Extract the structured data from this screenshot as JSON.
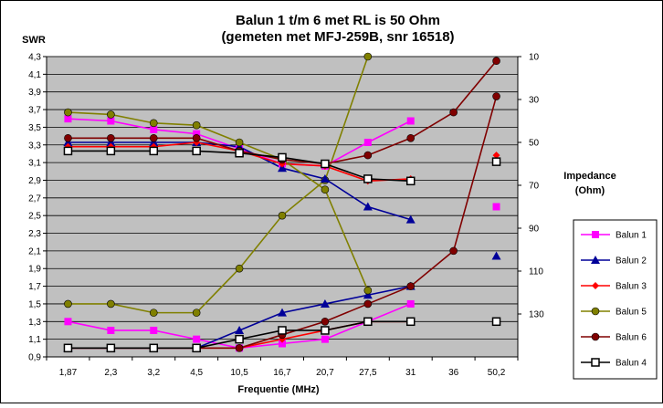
{
  "chart_data": {
    "type": "line",
    "title": "Balun 1 t/m 6 met RL is 50 Ohm",
    "subtitle": "(gemeten met MFJ-259B, snr 16518)",
    "xlabel": "Frequentie (MHz)",
    "ylabel": "SWR",
    "y2label_line1": "Impedance",
    "y2label_line2": "(Ohm)",
    "categories": [
      "1,87",
      "2,3",
      "3,2",
      "4,5",
      "10,5",
      "16,7",
      "20,7",
      "27,5",
      "31",
      "36",
      "50,2"
    ],
    "ylim": [
      0.9,
      4.3
    ],
    "yticks": [
      "0,9",
      "1,1",
      "1,3",
      "1,5",
      "1,7",
      "1,9",
      "2,1",
      "2,3",
      "2,5",
      "2,7",
      "2,9",
      "3,1",
      "3,3",
      "3,5",
      "3,7",
      "3,9",
      "4,1",
      "4,3"
    ],
    "y2lim": [
      150,
      10
    ],
    "y2ticks": [
      "10",
      "30",
      "50",
      "70",
      "90",
      "110",
      "130"
    ],
    "grid": true,
    "legend_position": "right",
    "colors": {
      "balun1": "#ff00ff",
      "balun2": "#000099",
      "balun3": "#ff0000",
      "balun5": "#808000",
      "balun6": "#800000",
      "balun4": "#000000",
      "plot_bg": "#c0c0c0"
    },
    "series": [
      {
        "name": "Balun 1",
        "color": "#ff00ff",
        "marker": "square",
        "axis": "swr",
        "values": [
          1.3,
          1.2,
          1.2,
          1.1,
          1.0,
          1.05,
          1.1,
          1.3,
          1.5,
          null,
          null
        ]
      },
      {
        "name": "Balun 2",
        "color": "#000099",
        "marker": "triangle",
        "axis": "swr",
        "values": [
          1.0,
          1.0,
          1.0,
          1.0,
          1.2,
          1.4,
          1.5,
          1.6,
          1.7,
          null,
          null
        ]
      },
      {
        "name": "Balun 3",
        "color": "#ff0000",
        "marker": "diamond",
        "axis": "swr",
        "values": [
          1.0,
          1.0,
          1.0,
          1.0,
          1.0,
          1.1,
          1.2,
          1.3,
          1.3,
          null,
          null
        ]
      },
      {
        "name": "Balun 5",
        "color": "#808000",
        "marker": "circle",
        "axis": "swr",
        "values": [
          1.5,
          1.5,
          1.4,
          1.4,
          1.9,
          2.5,
          2.9,
          4.3,
          null,
          null,
          null
        ]
      },
      {
        "name": "Balun 6",
        "color": "#800000",
        "marker": "circle",
        "axis": "swr",
        "values": [
          1.0,
          1.0,
          1.0,
          1.0,
          1.0,
          1.15,
          1.3,
          1.5,
          1.7,
          2.1,
          3.85
        ]
      },
      {
        "name": "Balun 4",
        "color": "#000000",
        "marker": "open-square",
        "axis": "swr",
        "values": [
          1.0,
          1.0,
          1.0,
          1.0,
          1.1,
          1.2,
          1.2,
          1.3,
          1.3,
          null,
          1.3
        ]
      },
      {
        "name": "Balun 1",
        "color": "#ff00ff",
        "marker": "square",
        "axis": "impedance",
        "values": [
          39,
          40,
          44,
          46,
          53,
          60,
          61,
          50,
          40,
          null,
          80
        ]
      },
      {
        "name": "Balun 2",
        "color": "#000099",
        "marker": "triangle",
        "axis": "impedance",
        "values": [
          50,
          50,
          50,
          50,
          52,
          62,
          67,
          80,
          86,
          null,
          103
        ]
      },
      {
        "name": "Balun 3",
        "color": "#ff0000",
        "marker": "diamond",
        "axis": "impedance",
        "values": [
          52,
          52,
          52,
          50,
          54,
          60,
          61,
          68,
          67,
          null,
          56
        ]
      },
      {
        "name": "Balun 5",
        "color": "#808000",
        "marker": "circle",
        "axis": "impedance",
        "values": [
          36,
          37,
          41,
          42,
          50,
          58,
          72,
          119,
          null,
          null,
          null
        ]
      },
      {
        "name": "Balun 6",
        "color": "#800000",
        "marker": "circle",
        "axis": "impedance",
        "values": [
          48,
          48,
          48,
          48,
          54,
          58,
          60,
          56,
          48,
          36,
          12
        ]
      },
      {
        "name": "Balun 4",
        "color": "#000000",
        "marker": "open-square",
        "axis": "impedance",
        "values": [
          54,
          54,
          54,
          54,
          55,
          57,
          60,
          67,
          68,
          null,
          59
        ]
      }
    ],
    "legend": [
      "Balun 1",
      "Balun 2",
      "Balun 3",
      "Balun 5",
      "Balun 6",
      "Balun 4"
    ]
  }
}
